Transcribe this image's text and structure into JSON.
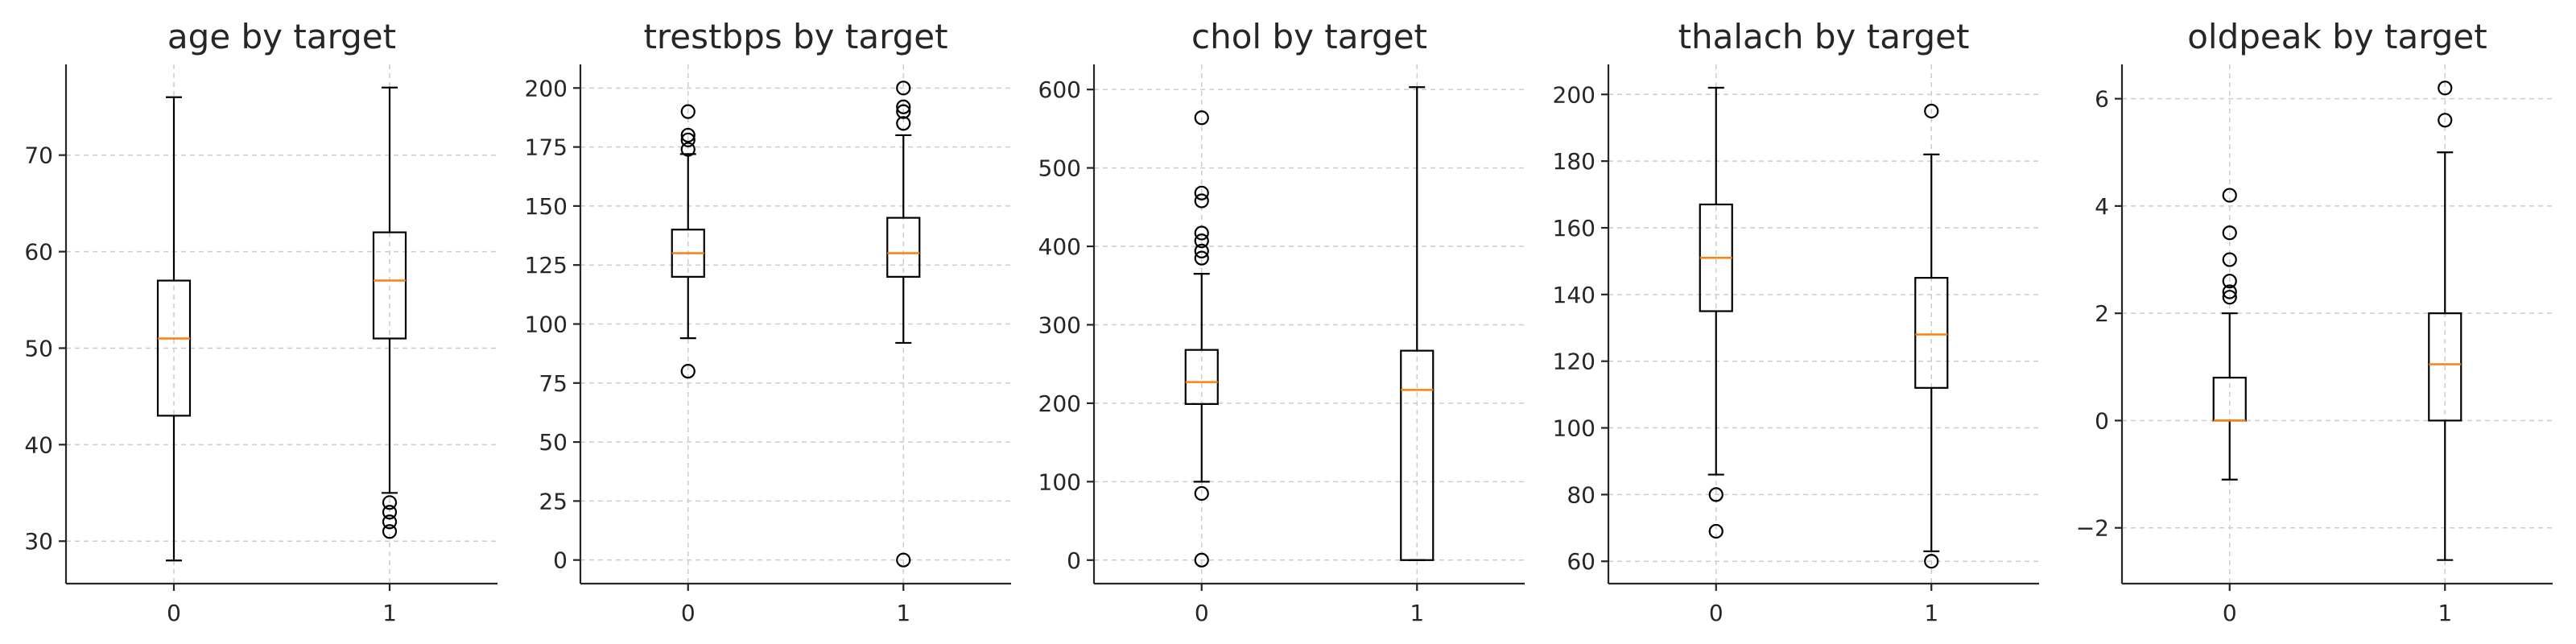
{
  "chart_data": [
    {
      "type": "box",
      "title": "age by target",
      "categories": [
        "0",
        "1"
      ],
      "ylim": [
        25.6,
        79.4
      ],
      "yticks": [
        30,
        40,
        50,
        60,
        70
      ],
      "ytick_labels": [
        "30",
        "40",
        "50",
        "60",
        "70"
      ],
      "grid": true,
      "boxes": [
        {
          "category": "0",
          "whislo": 28,
          "q1": 43,
          "med": 51,
          "q3": 57,
          "whishi": 76,
          "fliers": []
        },
        {
          "category": "1",
          "whislo": 35,
          "q1": 51,
          "med": 57,
          "q3": 62,
          "whishi": 77,
          "fliers": [
            31,
            32,
            33,
            34
          ]
        }
      ]
    },
    {
      "type": "box",
      "title": "trestbps by target",
      "categories": [
        "0",
        "1"
      ],
      "ylim": [
        -10,
        210
      ],
      "yticks": [
        0,
        25,
        50,
        75,
        100,
        125,
        150,
        175,
        200
      ],
      "ytick_labels": [
        "0",
        "25",
        "50",
        "75",
        "100",
        "125",
        "150",
        "175",
        "200"
      ],
      "grid": true,
      "boxes": [
        {
          "category": "0",
          "whislo": 94,
          "q1": 120,
          "med": 130,
          "q3": 140,
          "whishi": 172,
          "fliers": [
            80,
            174,
            178,
            180,
            190
          ]
        },
        {
          "category": "1",
          "whislo": 92,
          "q1": 120,
          "med": 130,
          "q3": 145,
          "whishi": 180,
          "fliers": [
            0,
            185,
            190,
            192,
            200
          ]
        }
      ]
    },
    {
      "type": "box",
      "title": "chol by target",
      "categories": [
        "0",
        "1"
      ],
      "ylim": [
        -30,
        632
      ],
      "yticks": [
        0,
        100,
        200,
        300,
        400,
        500,
        600
      ],
      "ytick_labels": [
        "0",
        "100",
        "200",
        "300",
        "400",
        "500",
        "600"
      ],
      "grid": true,
      "boxes": [
        {
          "category": "0",
          "whislo": 100,
          "q1": 199,
          "med": 227,
          "q3": 268,
          "whishi": 365,
          "fliers": [
            0,
            85,
            385,
            394,
            407,
            417,
            458,
            468,
            564
          ]
        },
        {
          "category": "1",
          "whislo": 0,
          "q1": 0,
          "med": 217,
          "q3": 267,
          "whishi": 603,
          "fliers": []
        }
      ]
    },
    {
      "type": "box",
      "title": "thalach by target",
      "categories": [
        "0",
        "1"
      ],
      "ylim": [
        53.3,
        209
      ],
      "yticks": [
        60,
        80,
        100,
        120,
        140,
        160,
        180,
        200
      ],
      "ytick_labels": [
        "60",
        "80",
        "100",
        "120",
        "140",
        "160",
        "180",
        "200"
      ],
      "grid": true,
      "boxes": [
        {
          "category": "0",
          "whislo": 86,
          "q1": 135,
          "med": 151,
          "q3": 167,
          "whishi": 202,
          "fliers": [
            69,
            80
          ]
        },
        {
          "category": "1",
          "whislo": 63,
          "q1": 112,
          "med": 128,
          "q3": 145,
          "whishi": 182,
          "fliers": [
            60,
            195
          ]
        }
      ]
    },
    {
      "type": "box",
      "title": "oldpeak by target",
      "categories": [
        "0",
        "1"
      ],
      "ylim": [
        -3.04,
        6.64
      ],
      "yticks": [
        -2,
        0,
        2,
        4,
        6
      ],
      "ytick_labels": [
        "−2",
        "0",
        "2",
        "4",
        "6"
      ],
      "grid": true,
      "boxes": [
        {
          "category": "0",
          "whislo": -1.1,
          "q1": 0,
          "med": 0,
          "q3": 0.8,
          "whishi": 2.0,
          "fliers": [
            2.3,
            2.4,
            2.6,
            3.0,
            3.5,
            4.2
          ]
        },
        {
          "category": "1",
          "whislo": -2.6,
          "q1": 0,
          "med": 1.05,
          "q3": 2.0,
          "whishi": 5.0,
          "fliers": [
            5.6,
            6.2
          ]
        }
      ]
    }
  ]
}
